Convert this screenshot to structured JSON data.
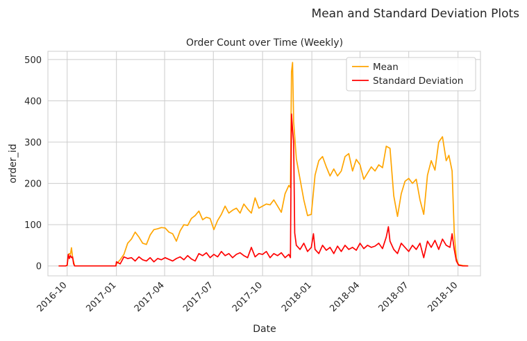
{
  "figure_title": "Mean and Standard Deviation Plots",
  "chart_data": {
    "type": "line",
    "title": "Order Count over Time (Weekly)",
    "xlabel": "Date",
    "ylabel": "order_id",
    "x_ticks": [
      "2016-10",
      "2017-01",
      "2017-04",
      "2017-07",
      "2017-10",
      "2018-01",
      "2018-04",
      "2018-07",
      "2018-10"
    ],
    "xlim": [
      "2016-08-26",
      "2018-11-12"
    ],
    "y_ticks": [
      0,
      100,
      200,
      300,
      400,
      500
    ],
    "ylim": [
      -24,
      520
    ],
    "grid": true,
    "legend_position": "top-right",
    "series": [
      {
        "name": "Mean",
        "color": "#FFA500",
        "points": [
          [
            "2016-09-15",
            0
          ],
          [
            "2016-09-28",
            0
          ],
          [
            "2016-10-01",
            1
          ],
          [
            "2016-10-03",
            25
          ],
          [
            "2016-10-05",
            30
          ],
          [
            "2016-10-07",
            28
          ],
          [
            "2016-10-09",
            44
          ],
          [
            "2016-10-11",
            22
          ],
          [
            "2016-10-13",
            10
          ],
          [
            "2016-10-15",
            0
          ],
          [
            "2016-12-31",
            0
          ],
          [
            "2017-01-01",
            5
          ],
          [
            "2017-01-08",
            15
          ],
          [
            "2017-01-15",
            28
          ],
          [
            "2017-01-22",
            55
          ],
          [
            "2017-01-29",
            65
          ],
          [
            "2017-02-05",
            82
          ],
          [
            "2017-02-12",
            70
          ],
          [
            "2017-02-19",
            55
          ],
          [
            "2017-02-26",
            52
          ],
          [
            "2017-03-05",
            75
          ],
          [
            "2017-03-12",
            88
          ],
          [
            "2017-03-19",
            90
          ],
          [
            "2017-03-26",
            93
          ],
          [
            "2017-04-02",
            92
          ],
          [
            "2017-04-09",
            82
          ],
          [
            "2017-04-16",
            78
          ],
          [
            "2017-04-23",
            60
          ],
          [
            "2017-04-30",
            85
          ],
          [
            "2017-05-07",
            100
          ],
          [
            "2017-05-14",
            98
          ],
          [
            "2017-05-21",
            115
          ],
          [
            "2017-05-28",
            122
          ],
          [
            "2017-06-04",
            133
          ],
          [
            "2017-06-11",
            112
          ],
          [
            "2017-06-18",
            118
          ],
          [
            "2017-06-25",
            115
          ],
          [
            "2017-07-02",
            88
          ],
          [
            "2017-07-09",
            110
          ],
          [
            "2017-07-16",
            125
          ],
          [
            "2017-07-23",
            145
          ],
          [
            "2017-07-30",
            128
          ],
          [
            "2017-08-06",
            135
          ],
          [
            "2017-08-13",
            140
          ],
          [
            "2017-08-20",
            128
          ],
          [
            "2017-08-27",
            150
          ],
          [
            "2017-09-03",
            138
          ],
          [
            "2017-09-10",
            128
          ],
          [
            "2017-09-17",
            165
          ],
          [
            "2017-09-24",
            140
          ],
          [
            "2017-10-01",
            145
          ],
          [
            "2017-10-08",
            150
          ],
          [
            "2017-10-15",
            148
          ],
          [
            "2017-10-22",
            160
          ],
          [
            "2017-10-29",
            145
          ],
          [
            "2017-11-05",
            130
          ],
          [
            "2017-11-12",
            175
          ],
          [
            "2017-11-19",
            195
          ],
          [
            "2017-11-22",
            190
          ],
          [
            "2017-11-24",
            470
          ],
          [
            "2017-11-26",
            493
          ],
          [
            "2017-11-28",
            350
          ],
          [
            "2017-12-03",
            260
          ],
          [
            "2017-12-10",
            210
          ],
          [
            "2017-12-17",
            160
          ],
          [
            "2017-12-24",
            122
          ],
          [
            "2017-12-31",
            125
          ],
          [
            "2018-01-07",
            220
          ],
          [
            "2018-01-14",
            255
          ],
          [
            "2018-01-21",
            265
          ],
          [
            "2018-01-28",
            240
          ],
          [
            "2018-02-04",
            218
          ],
          [
            "2018-02-11",
            235
          ],
          [
            "2018-02-18",
            218
          ],
          [
            "2018-02-25",
            230
          ],
          [
            "2018-03-04",
            265
          ],
          [
            "2018-03-11",
            272
          ],
          [
            "2018-03-18",
            230
          ],
          [
            "2018-03-25",
            258
          ],
          [
            "2018-04-01",
            245
          ],
          [
            "2018-04-08",
            210
          ],
          [
            "2018-04-15",
            225
          ],
          [
            "2018-04-22",
            240
          ],
          [
            "2018-04-29",
            230
          ],
          [
            "2018-05-06",
            245
          ],
          [
            "2018-05-13",
            238
          ],
          [
            "2018-05-20",
            290
          ],
          [
            "2018-05-27",
            285
          ],
          [
            "2018-06-03",
            170
          ],
          [
            "2018-06-10",
            120
          ],
          [
            "2018-06-17",
            175
          ],
          [
            "2018-06-24",
            205
          ],
          [
            "2018-07-01",
            212
          ],
          [
            "2018-07-08",
            200
          ],
          [
            "2018-07-15",
            210
          ],
          [
            "2018-07-22",
            160
          ],
          [
            "2018-07-29",
            125
          ],
          [
            "2018-08-05",
            220
          ],
          [
            "2018-08-12",
            255
          ],
          [
            "2018-08-19",
            232
          ],
          [
            "2018-08-26",
            300
          ],
          [
            "2018-09-02",
            313
          ],
          [
            "2018-09-09",
            255
          ],
          [
            "2018-09-14",
            268
          ],
          [
            "2018-09-20",
            230
          ],
          [
            "2018-09-24",
            80
          ],
          [
            "2018-09-28",
            18
          ],
          [
            "2018-10-02",
            3
          ],
          [
            "2018-10-10",
            1
          ],
          [
            "2018-10-20",
            0
          ]
        ]
      },
      {
        "name": "Standard Deviation",
        "color": "#FF0000",
        "points": [
          [
            "2016-09-15",
            0
          ],
          [
            "2016-09-28",
            0
          ],
          [
            "2016-10-01",
            2
          ],
          [
            "2016-10-03",
            28
          ],
          [
            "2016-10-05",
            18
          ],
          [
            "2016-10-07",
            25
          ],
          [
            "2016-10-09",
            20
          ],
          [
            "2016-10-11",
            22
          ],
          [
            "2016-10-13",
            5
          ],
          [
            "2016-10-15",
            0
          ],
          [
            "2016-12-31",
            0
          ],
          [
            "2017-01-01",
            10
          ],
          [
            "2017-01-08",
            5
          ],
          [
            "2017-01-15",
            22
          ],
          [
            "2017-01-22",
            18
          ],
          [
            "2017-01-29",
            20
          ],
          [
            "2017-02-05",
            12
          ],
          [
            "2017-02-12",
            22
          ],
          [
            "2017-02-19",
            15
          ],
          [
            "2017-02-26",
            12
          ],
          [
            "2017-03-05",
            20
          ],
          [
            "2017-03-12",
            10
          ],
          [
            "2017-03-19",
            18
          ],
          [
            "2017-03-26",
            15
          ],
          [
            "2017-04-02",
            20
          ],
          [
            "2017-04-09",
            16
          ],
          [
            "2017-04-16",
            12
          ],
          [
            "2017-04-23",
            18
          ],
          [
            "2017-04-30",
            22
          ],
          [
            "2017-05-07",
            15
          ],
          [
            "2017-05-14",
            25
          ],
          [
            "2017-05-21",
            17
          ],
          [
            "2017-05-28",
            12
          ],
          [
            "2017-06-04",
            30
          ],
          [
            "2017-06-11",
            25
          ],
          [
            "2017-06-18",
            32
          ],
          [
            "2017-06-25",
            20
          ],
          [
            "2017-07-02",
            28
          ],
          [
            "2017-07-09",
            22
          ],
          [
            "2017-07-16",
            35
          ],
          [
            "2017-07-23",
            25
          ],
          [
            "2017-07-30",
            30
          ],
          [
            "2017-08-06",
            20
          ],
          [
            "2017-08-13",
            28
          ],
          [
            "2017-08-20",
            32
          ],
          [
            "2017-08-27",
            25
          ],
          [
            "2017-09-03",
            20
          ],
          [
            "2017-09-10",
            45
          ],
          [
            "2017-09-17",
            22
          ],
          [
            "2017-09-24",
            30
          ],
          [
            "2017-10-01",
            28
          ],
          [
            "2017-10-08",
            35
          ],
          [
            "2017-10-15",
            20
          ],
          [
            "2017-10-22",
            30
          ],
          [
            "2017-10-29",
            25
          ],
          [
            "2017-11-05",
            32
          ],
          [
            "2017-11-12",
            20
          ],
          [
            "2017-11-19",
            28
          ],
          [
            "2017-11-22",
            20
          ],
          [
            "2017-11-24",
            368
          ],
          [
            "2017-11-26",
            330
          ],
          [
            "2017-11-28",
            300
          ],
          [
            "2017-11-30",
            80
          ],
          [
            "2017-12-03",
            50
          ],
          [
            "2017-12-10",
            40
          ],
          [
            "2017-12-17",
            55
          ],
          [
            "2017-12-24",
            35
          ],
          [
            "2017-12-31",
            45
          ],
          [
            "2018-01-04",
            78
          ],
          [
            "2018-01-07",
            40
          ],
          [
            "2018-01-14",
            30
          ],
          [
            "2018-01-21",
            50
          ],
          [
            "2018-01-28",
            38
          ],
          [
            "2018-02-04",
            45
          ],
          [
            "2018-02-11",
            30
          ],
          [
            "2018-02-18",
            48
          ],
          [
            "2018-02-25",
            35
          ],
          [
            "2018-03-04",
            50
          ],
          [
            "2018-03-11",
            40
          ],
          [
            "2018-03-18",
            45
          ],
          [
            "2018-03-25",
            38
          ],
          [
            "2018-04-01",
            55
          ],
          [
            "2018-04-08",
            42
          ],
          [
            "2018-04-15",
            50
          ],
          [
            "2018-04-22",
            45
          ],
          [
            "2018-04-29",
            48
          ],
          [
            "2018-05-06",
            55
          ],
          [
            "2018-05-13",
            42
          ],
          [
            "2018-05-20",
            70
          ],
          [
            "2018-05-24",
            95
          ],
          [
            "2018-05-27",
            60
          ],
          [
            "2018-06-03",
            40
          ],
          [
            "2018-06-10",
            30
          ],
          [
            "2018-06-17",
            55
          ],
          [
            "2018-06-24",
            45
          ],
          [
            "2018-07-01",
            35
          ],
          [
            "2018-07-08",
            50
          ],
          [
            "2018-07-15",
            40
          ],
          [
            "2018-07-22",
            55
          ],
          [
            "2018-07-29",
            20
          ],
          [
            "2018-08-05",
            60
          ],
          [
            "2018-08-12",
            45
          ],
          [
            "2018-08-19",
            62
          ],
          [
            "2018-08-26",
            40
          ],
          [
            "2018-09-02",
            65
          ],
          [
            "2018-09-09",
            50
          ],
          [
            "2018-09-16",
            45
          ],
          [
            "2018-09-20",
            78
          ],
          [
            "2018-09-24",
            40
          ],
          [
            "2018-09-28",
            12
          ],
          [
            "2018-10-02",
            2
          ],
          [
            "2018-10-10",
            0
          ],
          [
            "2018-10-20",
            0
          ]
        ]
      }
    ]
  }
}
